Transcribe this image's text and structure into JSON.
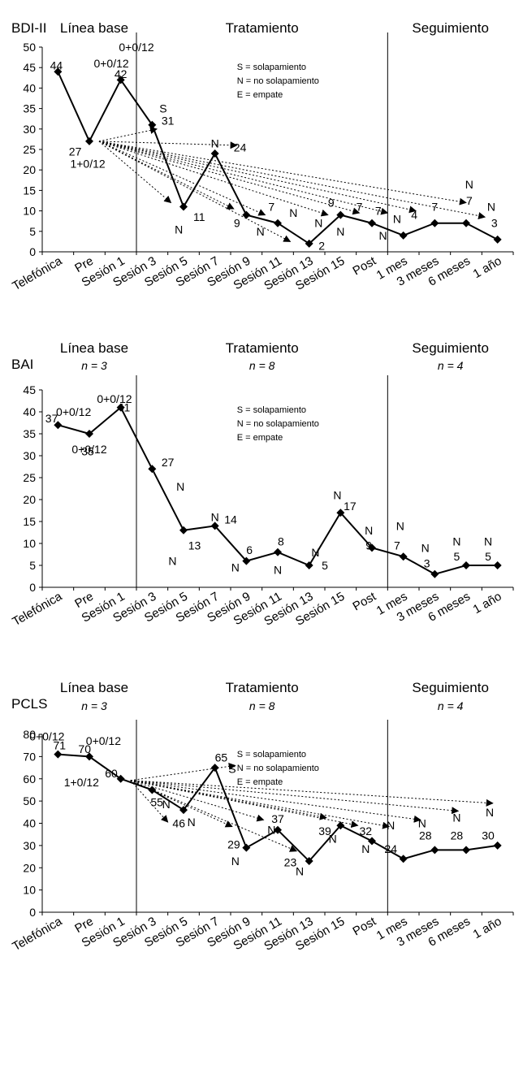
{
  "categories": [
    "Telefónica",
    "Pre",
    "Sesión 1",
    "Sesión 3",
    "Sesión 5",
    "Sesión 7",
    "Sesión 9",
    "Sesión 11",
    "Sesión 13",
    "Sesión 15",
    "Post",
    "1 mes",
    "3 meses",
    "6 meses",
    "1 año"
  ],
  "phases": {
    "baseline": "Línea base",
    "treatment": "Tratamiento",
    "followup": "Seguimiento"
  },
  "legend": [
    "S = solapamiento",
    "N = no solapamiento",
    "E = empate"
  ],
  "chart_data": [
    {
      "type": "line",
      "title": "BDI-II",
      "ylim": [
        0,
        50
      ],
      "yticks": [
        0,
        5,
        10,
        15,
        20,
        25,
        30,
        35,
        40,
        45,
        50
      ],
      "values": [
        44,
        27,
        42,
        31,
        11,
        24,
        9,
        7,
        2,
        9,
        7,
        4,
        7,
        7,
        3
      ],
      "phase_n": [
        "",
        "",
        ""
      ],
      "annotations": [
        {
          "text": "0+0/12",
          "x": 1.7,
          "y": 46
        },
        {
          "text": "0+0/12",
          "x": 2.5,
          "y": 50
        },
        {
          "text": "1+0/12",
          "x": 0.95,
          "y": 21.5
        },
        {
          "text": "S",
          "x": 3.35,
          "y": 35
        },
        {
          "text": "N",
          "x": 5.0,
          "y": 26.5
        },
        {
          "text": "N",
          "x": 3.85,
          "y": 5.5
        },
        {
          "text": "9",
          "x": 5.7,
          "y": 7
        },
        {
          "text": "N",
          "x": 6.45,
          "y": 5
        },
        {
          "text": "7",
          "x": 6.8,
          "y": 11
        },
        {
          "text": "N",
          "x": 7.5,
          "y": 9.5
        },
        {
          "text": "N",
          "x": 8.3,
          "y": 7
        },
        {
          "text": "9",
          "x": 8.7,
          "y": 12
        },
        {
          "text": "7",
          "x": 9.6,
          "y": 11
        },
        {
          "text": "N",
          "x": 9.0,
          "y": 5
        },
        {
          "text": "7",
          "x": 10.2,
          "y": 10
        },
        {
          "text": "N",
          "x": 10.35,
          "y": 4
        },
        {
          "text": "N",
          "x": 10.8,
          "y": 8
        },
        {
          "text": "4",
          "x": 11.35,
          "y": 9
        },
        {
          "text": "7",
          "x": 12.0,
          "y": 11
        },
        {
          "text": "N",
          "x": 13.1,
          "y": 16.5
        },
        {
          "text": "7",
          "x": 13.1,
          "y": 12.5
        },
        {
          "text": "N",
          "x": 13.8,
          "y": 11
        },
        {
          "text": "3",
          "x": 13.9,
          "y": 7
        }
      ],
      "point_labels": [
        {
          "text": "44",
          "x": -0.05,
          "y": 45.5
        },
        {
          "text": "27",
          "x": 0.55,
          "y": 24.5
        },
        {
          "text": "42",
          "x": 2.0,
          "y": 43.5
        },
        {
          "text": "31",
          "x": 3.5,
          "y": 32
        },
        {
          "text": "11",
          "x": 4.5,
          "y": 8.5
        },
        {
          "text": "24",
          "x": 5.8,
          "y": 25.5
        },
        {
          "text": "2",
          "x": 8.4,
          "y": 1.5
        }
      ],
      "arrows": [
        {
          "to_x": 3.15,
          "to_y": 30
        },
        {
          "to_x": 5.7,
          "to_y": 26
        },
        {
          "to_x": 3.6,
          "to_y": 12
        },
        {
          "to_x": 5.6,
          "to_y": 10.5
        },
        {
          "to_x": 6.6,
          "to_y": 9
        },
        {
          "to_x": 7.4,
          "to_y": 2.5
        },
        {
          "to_x": 8.6,
          "to_y": 9
        },
        {
          "to_x": 9.6,
          "to_y": 9.5
        },
        {
          "to_x": 10.5,
          "to_y": 9.5
        },
        {
          "to_x": 11.4,
          "to_y": 10
        },
        {
          "to_x": 13.0,
          "to_y": 12
        },
        {
          "to_x": 13.6,
          "to_y": 8.5
        }
      ]
    },
    {
      "type": "line",
      "title": "BAI",
      "ylim": [
        0,
        45
      ],
      "yticks": [
        0,
        5,
        10,
        15,
        20,
        25,
        30,
        35,
        40,
        45
      ],
      "values": [
        37,
        35,
        41,
        27,
        13,
        14,
        6,
        8,
        5,
        17,
        9,
        7,
        3,
        5,
        5
      ],
      "phase_n": [
        "n = 3",
        "n = 8",
        "n = 4"
      ],
      "annotations": [
        {
          "text": "0+0/12",
          "x": 1.8,
          "y": 43
        },
        {
          "text": "0+0/12",
          "x": 0.5,
          "y": 40
        },
        {
          "text": "0+0/12",
          "x": 1.0,
          "y": 31.5
        },
        {
          "text": "N",
          "x": 3.9,
          "y": 23
        },
        {
          "text": "N",
          "x": 3.65,
          "y": 6
        },
        {
          "text": "N",
          "x": 5.0,
          "y": 16
        },
        {
          "text": "N",
          "x": 5.65,
          "y": 4.5
        },
        {
          "text": "N",
          "x": 7.0,
          "y": 4
        },
        {
          "text": "N",
          "x": 8.2,
          "y": 8
        },
        {
          "text": "N",
          "x": 8.9,
          "y": 21
        },
        {
          "text": "N",
          "x": 9.9,
          "y": 13
        },
        {
          "text": "N",
          "x": 10.9,
          "y": 14
        },
        {
          "text": "N",
          "x": 11.7,
          "y": 9
        },
        {
          "text": "N",
          "x": 12.7,
          "y": 10.5
        },
        {
          "text": "N",
          "x": 13.7,
          "y": 10.5
        }
      ],
      "point_labels": [
        {
          "text": "37",
          "x": -0.2,
          "y": 38.5
        },
        {
          "text": "35",
          "x": 0.95,
          "y": 31
        },
        {
          "text": "41",
          "x": 2.1,
          "y": 41
        },
        {
          "text": "27",
          "x": 3.5,
          "y": 28.5
        },
        {
          "text": "13",
          "x": 4.35,
          "y": 9.5
        },
        {
          "text": "14",
          "x": 5.5,
          "y": 15.5
        },
        {
          "text": "6",
          "x": 6.1,
          "y": 8.5
        },
        {
          "text": "8",
          "x": 7.1,
          "y": 10.5
        },
        {
          "text": "5",
          "x": 8.5,
          "y": 5
        },
        {
          "text": "17",
          "x": 9.3,
          "y": 18.5
        },
        {
          "text": "9",
          "x": 9.9,
          "y": 9.5
        },
        {
          "text": "7",
          "x": 10.8,
          "y": 9.5
        },
        {
          "text": "3",
          "x": 11.75,
          "y": 5.5
        },
        {
          "text": "5",
          "x": 12.7,
          "y": 7
        },
        {
          "text": "5",
          "x": 13.7,
          "y": 7
        }
      ],
      "arrows": []
    },
    {
      "type": "line",
      "title": "PCLS",
      "ylim": [
        0,
        80
      ],
      "yticks": [
        0,
        10,
        20,
        30,
        40,
        50,
        60,
        70,
        80
      ],
      "values": [
        71,
        70,
        60,
        55,
        46,
        65,
        29,
        37,
        23,
        39,
        32,
        24,
        28,
        28,
        30
      ],
      "phase_n": [
        "n = 3",
        "n = 8",
        "n = 4"
      ],
      "annotations": [
        {
          "text": "0+0/12",
          "x": -0.35,
          "y": 79
        },
        {
          "text": "0+0/12",
          "x": 1.45,
          "y": 77
        },
        {
          "text": "1+0/12",
          "x": 0.75,
          "y": 58.5
        },
        {
          "text": "S",
          "x": 5.55,
          "y": 64.5
        },
        {
          "text": "N",
          "x": 3.45,
          "y": 48.5
        },
        {
          "text": "N",
          "x": 4.25,
          "y": 40.5
        },
        {
          "text": "N",
          "x": 5.65,
          "y": 23
        },
        {
          "text": "N",
          "x": 6.8,
          "y": 37
        },
        {
          "text": "N",
          "x": 7.7,
          "y": 18.5
        },
        {
          "text": "N",
          "x": 8.75,
          "y": 33
        },
        {
          "text": "N",
          "x": 9.8,
          "y": 28.5
        },
        {
          "text": "N",
          "x": 10.6,
          "y": 39
        },
        {
          "text": "N",
          "x": 11.6,
          "y": 40
        },
        {
          "text": "N",
          "x": 12.7,
          "y": 42.5
        },
        {
          "text": "N",
          "x": 13.75,
          "y": 45
        }
      ],
      "point_labels": [
        {
          "text": "71",
          "x": 0.05,
          "y": 75
        },
        {
          "text": "70",
          "x": 0.85,
          "y": 73.5
        },
        {
          "text": "60",
          "x": 1.7,
          "y": 62.5
        },
        {
          "text": "55",
          "x": 3.15,
          "y": 49.5
        },
        {
          "text": "46",
          "x": 3.85,
          "y": 40
        },
        {
          "text": "65",
          "x": 5.2,
          "y": 69.5
        },
        {
          "text": "29",
          "x": 5.6,
          "y": 30.5
        },
        {
          "text": "37",
          "x": 7.0,
          "y": 42
        },
        {
          "text": "23",
          "x": 7.4,
          "y": 22.5
        },
        {
          "text": "39",
          "x": 8.5,
          "y": 36.5
        },
        {
          "text": "32",
          "x": 9.8,
          "y": 36.5
        },
        {
          "text": "24",
          "x": 10.6,
          "y": 28.5
        },
        {
          "text": "28",
          "x": 11.7,
          "y": 34.5
        },
        {
          "text": "28",
          "x": 12.7,
          "y": 34.5
        },
        {
          "text": "30",
          "x": 13.7,
          "y": 34.5
        }
      ],
      "arrows": [
        {
          "to_x": 5.65,
          "to_y": 66
        },
        {
          "to_x": 3.5,
          "to_y": 40.5
        },
        {
          "to_x": 5.55,
          "to_y": 38.5
        },
        {
          "to_x": 6.55,
          "to_y": 41.5
        },
        {
          "to_x": 7.6,
          "to_y": 27.5
        },
        {
          "to_x": 8.55,
          "to_y": 42.5
        },
        {
          "to_x": 9.55,
          "to_y": 39
        },
        {
          "to_x": 10.55,
          "to_y": 38.5
        },
        {
          "to_x": 11.55,
          "to_y": 41.5
        },
        {
          "to_x": 12.75,
          "to_y": 45.5
        },
        {
          "to_x": 13.85,
          "to_y": 49
        }
      ]
    }
  ]
}
